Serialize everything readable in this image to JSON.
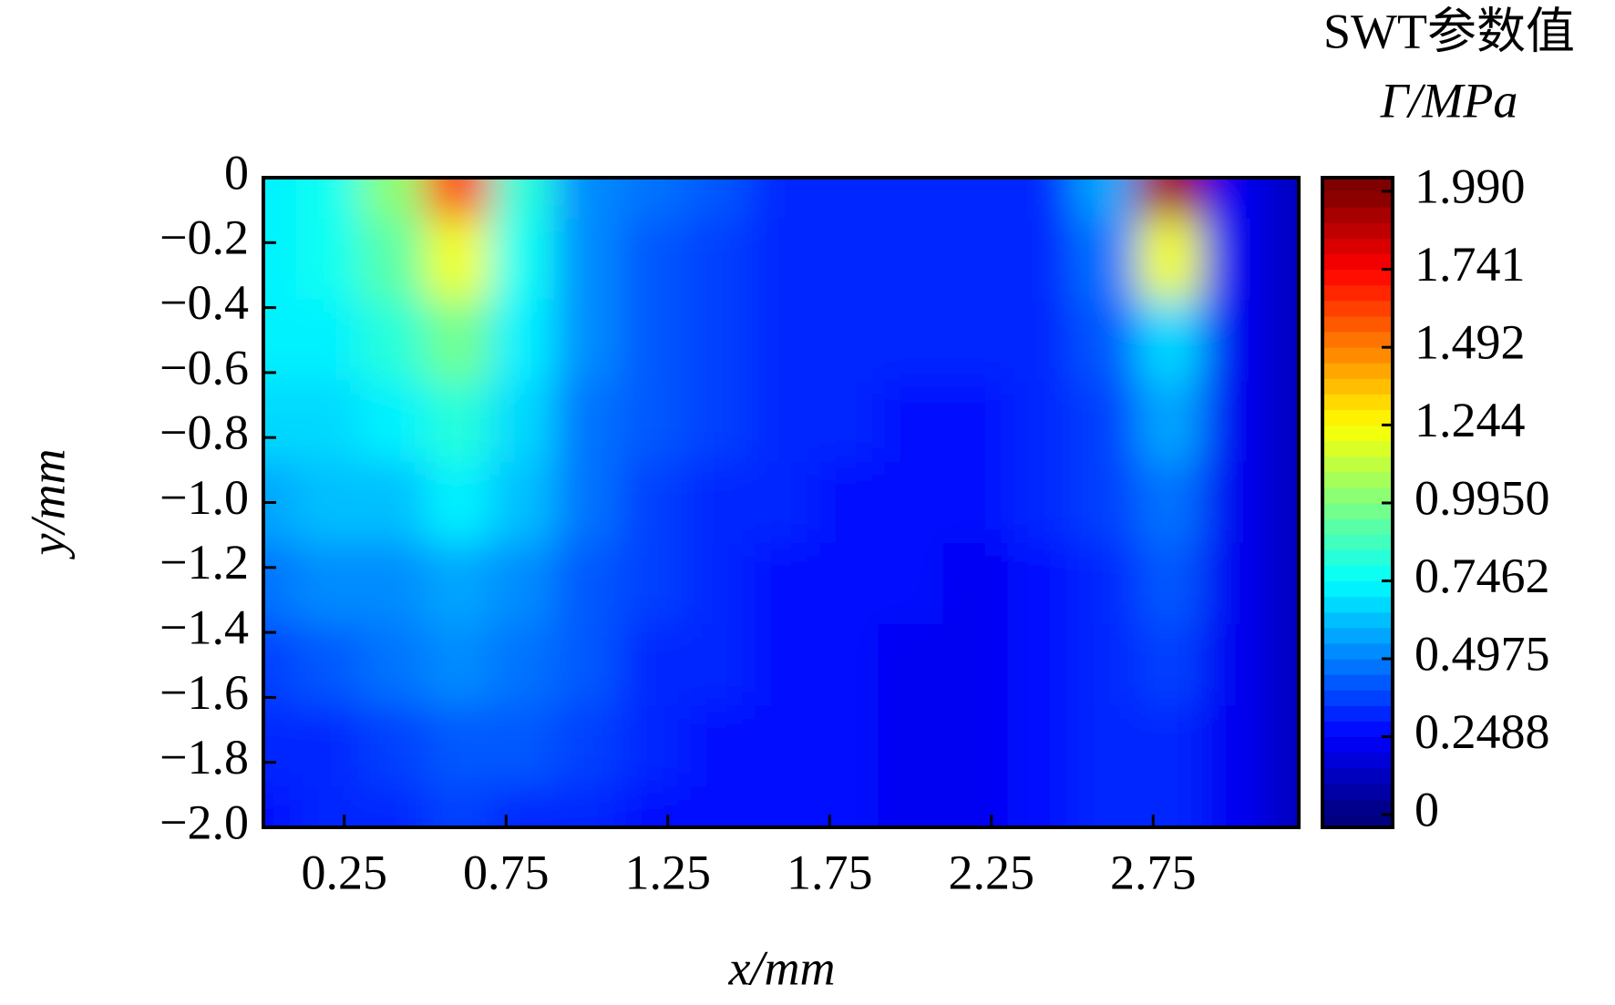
{
  "chart_data": {
    "type": "contour",
    "xlabel": "x/mm",
    "ylabel": "y/mm",
    "colorbar_title": "SWT参数值",
    "colorbar_label": "Γ/MPa",
    "x": [
      0,
      0.2,
      0.4,
      0.6,
      0.8,
      1.0,
      1.2,
      1.4,
      1.6,
      1.8,
      2.0,
      2.2,
      2.4,
      2.6,
      2.8,
      3.0,
      3.2
    ],
    "y": [
      0,
      -0.25,
      -0.5,
      -0.75,
      -1.0,
      -1.25,
      -1.5,
      -1.75,
      -2.0
    ],
    "z": [
      [
        0.72,
        0.75,
        1.0,
        1.6,
        0.8,
        0.5,
        0.45,
        0.4,
        0.33,
        0.3,
        0.3,
        0.3,
        0.32,
        0.55,
        1.9,
        0.2,
        0.1
      ],
      [
        0.72,
        0.75,
        0.9,
        1.2,
        0.75,
        0.5,
        0.42,
        0.38,
        0.32,
        0.3,
        0.3,
        0.3,
        0.32,
        0.45,
        1.2,
        0.2,
        0.1
      ],
      [
        0.7,
        0.72,
        0.8,
        0.95,
        0.7,
        0.5,
        0.4,
        0.36,
        0.3,
        0.3,
        0.3,
        0.3,
        0.31,
        0.4,
        0.65,
        0.2,
        0.1
      ],
      [
        0.65,
        0.68,
        0.72,
        0.82,
        0.65,
        0.48,
        0.4,
        0.35,
        0.3,
        0.3,
        0.29,
        0.29,
        0.3,
        0.38,
        0.55,
        0.2,
        0.1
      ],
      [
        0.55,
        0.6,
        0.62,
        0.7,
        0.6,
        0.45,
        0.38,
        0.33,
        0.3,
        0.29,
        0.28,
        0.25,
        0.3,
        0.35,
        0.45,
        0.2,
        0.1
      ],
      [
        0.45,
        0.5,
        0.52,
        0.58,
        0.52,
        0.42,
        0.35,
        0.32,
        0.28,
        0.27,
        0.26,
        0.24,
        0.29,
        0.33,
        0.4,
        0.2,
        0.1
      ],
      [
        0.38,
        0.4,
        0.45,
        0.5,
        0.48,
        0.4,
        0.33,
        0.3,
        0.27,
        0.25,
        0.24,
        0.22,
        0.28,
        0.32,
        0.36,
        0.2,
        0.1
      ],
      [
        0.33,
        0.34,
        0.38,
        0.42,
        0.4,
        0.35,
        0.3,
        0.28,
        0.26,
        0.25,
        0.24,
        0.22,
        0.27,
        0.3,
        0.32,
        0.2,
        0.1
      ],
      [
        0.28,
        0.3,
        0.3,
        0.35,
        0.33,
        0.3,
        0.28,
        0.27,
        0.25,
        0.25,
        0.24,
        0.23,
        0.26,
        0.3,
        0.3,
        0.2,
        0.1
      ]
    ],
    "xlim": [
      0,
      3.2
    ],
    "ylim": [
      -2.0,
      0
    ],
    "xticks": [
      0.25,
      0.75,
      1.25,
      1.75,
      2.25,
      2.75
    ],
    "yticks": [
      0,
      {
        "value": -0.2,
        "label": "−0.2"
      },
      {
        "value": -0.4,
        "label": "−0.4"
      },
      {
        "value": -0.6,
        "label": "−0.6"
      },
      {
        "value": -0.8,
        "label": "−0.8"
      },
      {
        "value": -1.0,
        "label": "−1.0"
      },
      {
        "value": -1.2,
        "label": "−1.2"
      },
      {
        "value": -1.4,
        "label": "−1.4"
      },
      {
        "value": -1.6,
        "label": "−1.6"
      },
      {
        "value": -1.8,
        "label": "−1.8"
      },
      {
        "value": -2.0,
        "label": "−2.0"
      }
    ],
    "clim": [
      0,
      1.99
    ],
    "cticks": [
      0,
      0.2488,
      0.4975,
      0.7462,
      {
        "value": 0.995,
        "label": "0.9950"
      },
      1.244,
      1.492,
      1.741,
      {
        "value": 1.99,
        "label": "1.990"
      }
    ],
    "colormap": "jet"
  }
}
